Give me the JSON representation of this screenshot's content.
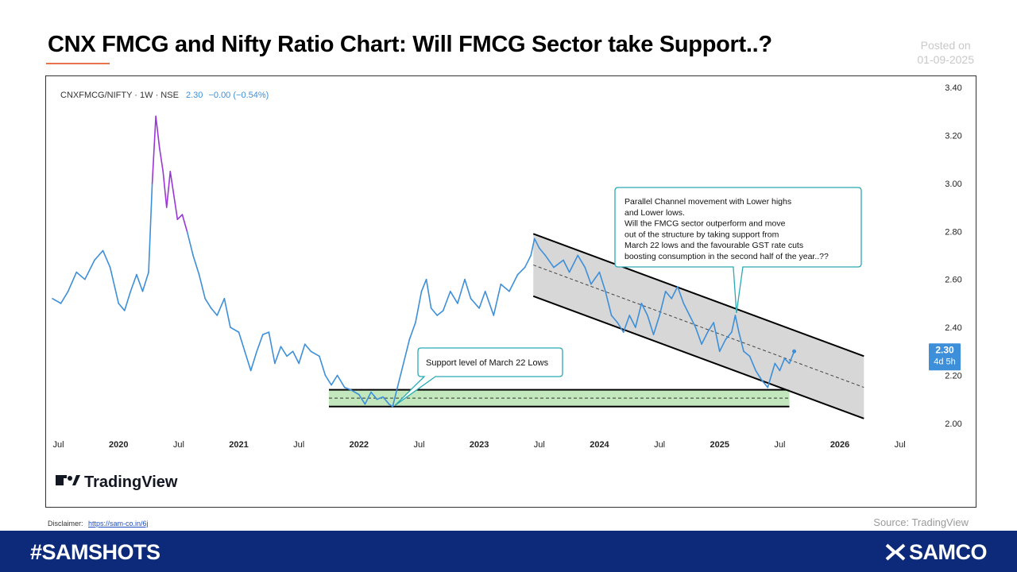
{
  "header": {
    "title": "CNX FMCG and Nifty Ratio Chart: Will FMCG Sector take Support..?",
    "posted_label": "Posted on",
    "posted_date": "01-09-2025"
  },
  "chart_data": {
    "type": "line",
    "title": "CNXFMCG/NIFTY · 1W · NSE",
    "legend_value": "2.30",
    "legend_change": "−0.00 (−0.54%)",
    "last_price_badge": "2.30",
    "badge_time": "4d 5h",
    "series_color": "#3d8fd9",
    "series_high_color": "#9b36d6",
    "ylim": [
      1.95,
      3.42
    ],
    "xlim": [
      2019.45,
      2026.72
    ],
    "y_ticks": [
      "3.40",
      "3.20",
      "3.00",
      "2.80",
      "2.60",
      "2.40",
      "2.20",
      "2.00"
    ],
    "y_tick_values": [
      3.4,
      3.2,
      3.0,
      2.8,
      2.6,
      2.4,
      2.2,
      2.0
    ],
    "x_ticks": [
      {
        "label": "Jul",
        "t": 2019.5,
        "bold": false
      },
      {
        "label": "2020",
        "t": 2020.0,
        "bold": true
      },
      {
        "label": "Jul",
        "t": 2020.5,
        "bold": false
      },
      {
        "label": "2021",
        "t": 2021.0,
        "bold": true
      },
      {
        "label": "Jul",
        "t": 2021.5,
        "bold": false
      },
      {
        "label": "2022",
        "t": 2022.0,
        "bold": true
      },
      {
        "label": "Jul",
        "t": 2022.5,
        "bold": false
      },
      {
        "label": "2023",
        "t": 2023.0,
        "bold": true
      },
      {
        "label": "Jul",
        "t": 2023.5,
        "bold": false
      },
      {
        "label": "2024",
        "t": 2024.0,
        "bold": true
      },
      {
        "label": "Jul",
        "t": 2024.5,
        "bold": false
      },
      {
        "label": "2025",
        "t": 2025.0,
        "bold": true
      },
      {
        "label": "Jul",
        "t": 2025.5,
        "bold": false
      },
      {
        "label": "2026",
        "t": 2026.0,
        "bold": true
      },
      {
        "label": "Jul",
        "t": 2026.5,
        "bold": false
      }
    ],
    "series": [
      {
        "name": "CNXFMCG/NIFTY",
        "points": [
          [
            2019.45,
            2.52
          ],
          [
            2019.52,
            2.5
          ],
          [
            2019.58,
            2.55
          ],
          [
            2019.65,
            2.63
          ],
          [
            2019.72,
            2.6
          ],
          [
            2019.8,
            2.68
          ],
          [
            2019.87,
            2.72
          ],
          [
            2019.93,
            2.65
          ],
          [
            2020.0,
            2.5
          ],
          [
            2020.05,
            2.47
          ],
          [
            2020.1,
            2.55
          ],
          [
            2020.15,
            2.62
          ],
          [
            2020.2,
            2.55
          ],
          [
            2020.25,
            2.63
          ],
          [
            2020.28,
            3.0
          ],
          [
            2020.31,
            3.28
          ],
          [
            2020.34,
            3.15
          ],
          [
            2020.37,
            3.05
          ],
          [
            2020.4,
            2.9
          ],
          [
            2020.43,
            3.05
          ],
          [
            2020.46,
            2.95
          ],
          [
            2020.49,
            2.85
          ],
          [
            2020.53,
            2.87
          ],
          [
            2020.57,
            2.8
          ],
          [
            2020.62,
            2.7
          ],
          [
            2020.67,
            2.62
          ],
          [
            2020.72,
            2.52
          ],
          [
            2020.77,
            2.48
          ],
          [
            2020.82,
            2.45
          ],
          [
            2020.88,
            2.52
          ],
          [
            2020.93,
            2.4
          ],
          [
            2021.0,
            2.38
          ],
          [
            2021.05,
            2.3
          ],
          [
            2021.1,
            2.22
          ],
          [
            2021.15,
            2.3
          ],
          [
            2021.2,
            2.37
          ],
          [
            2021.25,
            2.38
          ],
          [
            2021.3,
            2.25
          ],
          [
            2021.35,
            2.32
          ],
          [
            2021.4,
            2.28
          ],
          [
            2021.45,
            2.3
          ],
          [
            2021.5,
            2.25
          ],
          [
            2021.55,
            2.33
          ],
          [
            2021.6,
            2.3
          ],
          [
            2021.67,
            2.28
          ],
          [
            2021.72,
            2.2
          ],
          [
            2021.77,
            2.16
          ],
          [
            2021.82,
            2.2
          ],
          [
            2021.88,
            2.15
          ],
          [
            2021.93,
            2.14
          ],
          [
            2022.0,
            2.12
          ],
          [
            2022.05,
            2.08
          ],
          [
            2022.1,
            2.13
          ],
          [
            2022.15,
            2.1
          ],
          [
            2022.2,
            2.11
          ],
          [
            2022.25,
            2.08
          ],
          [
            2022.28,
            2.07
          ],
          [
            2022.32,
            2.15
          ],
          [
            2022.37,
            2.25
          ],
          [
            2022.42,
            2.35
          ],
          [
            2022.47,
            2.42
          ],
          [
            2022.52,
            2.55
          ],
          [
            2022.56,
            2.6
          ],
          [
            2022.6,
            2.48
          ],
          [
            2022.65,
            2.45
          ],
          [
            2022.7,
            2.47
          ],
          [
            2022.76,
            2.55
          ],
          [
            2022.82,
            2.5
          ],
          [
            2022.88,
            2.6
          ],
          [
            2022.93,
            2.52
          ],
          [
            2023.0,
            2.48
          ],
          [
            2023.05,
            2.55
          ],
          [
            2023.12,
            2.45
          ],
          [
            2023.18,
            2.58
          ],
          [
            2023.25,
            2.55
          ],
          [
            2023.32,
            2.62
          ],
          [
            2023.38,
            2.65
          ],
          [
            2023.43,
            2.7
          ],
          [
            2023.46,
            2.77
          ],
          [
            2023.5,
            2.73
          ],
          [
            2023.55,
            2.7
          ],
          [
            2023.62,
            2.65
          ],
          [
            2023.7,
            2.68
          ],
          [
            2023.75,
            2.63
          ],
          [
            2023.82,
            2.7
          ],
          [
            2023.88,
            2.65
          ],
          [
            2023.93,
            2.58
          ],
          [
            2024.0,
            2.63
          ],
          [
            2024.05,
            2.55
          ],
          [
            2024.1,
            2.45
          ],
          [
            2024.15,
            2.42
          ],
          [
            2024.2,
            2.38
          ],
          [
            2024.25,
            2.45
          ],
          [
            2024.3,
            2.4
          ],
          [
            2024.35,
            2.5
          ],
          [
            2024.4,
            2.45
          ],
          [
            2024.45,
            2.37
          ],
          [
            2024.5,
            2.45
          ],
          [
            2024.55,
            2.55
          ],
          [
            2024.6,
            2.52
          ],
          [
            2024.65,
            2.57
          ],
          [
            2024.7,
            2.5
          ],
          [
            2024.75,
            2.45
          ],
          [
            2024.8,
            2.4
          ],
          [
            2024.85,
            2.33
          ],
          [
            2024.9,
            2.38
          ],
          [
            2024.95,
            2.42
          ],
          [
            2025.0,
            2.3
          ],
          [
            2025.05,
            2.35
          ],
          [
            2025.1,
            2.38
          ],
          [
            2025.13,
            2.45
          ],
          [
            2025.16,
            2.38
          ],
          [
            2025.2,
            2.3
          ],
          [
            2025.25,
            2.28
          ],
          [
            2025.3,
            2.22
          ],
          [
            2025.35,
            2.18
          ],
          [
            2025.4,
            2.15
          ],
          [
            2025.43,
            2.2
          ],
          [
            2025.46,
            2.25
          ],
          [
            2025.5,
            2.22
          ],
          [
            2025.54,
            2.27
          ],
          [
            2025.58,
            2.25
          ],
          [
            2025.62,
            2.3
          ]
        ]
      }
    ],
    "channel": {
      "upper": [
        [
          2023.45,
          2.79
        ],
        [
          2026.2,
          2.28
        ]
      ],
      "lower": [
        [
          2023.45,
          2.53
        ],
        [
          2026.2,
          2.02
        ]
      ]
    },
    "support_zone": {
      "t0": 2021.75,
      "t1": 2025.58,
      "top": 2.14,
      "bottom": 2.07
    },
    "annotations": [
      {
        "id": "channel-note",
        "lines": [
          "Parallel Channel movement with Lower highs",
          "and Lower lows.",
          "Will the FMCG sector outperform and move",
          "out of the structure by taking support from",
          "March 22 lows and the favourable GST rate cuts",
          "boosting consumption in the second half of the year..??"
        ]
      },
      {
        "id": "support-note",
        "lines": [
          "Support level of March 22 Lows"
        ]
      }
    ],
    "watermark": "TradingView"
  },
  "footer": {
    "disclaimer_label": "Disclaimer:",
    "disclaimer_link": "https://sam-co.in/6j",
    "source": "Source: TradingView",
    "hashtag": "#SAMSHOTS",
    "brand": "SAMCO"
  }
}
